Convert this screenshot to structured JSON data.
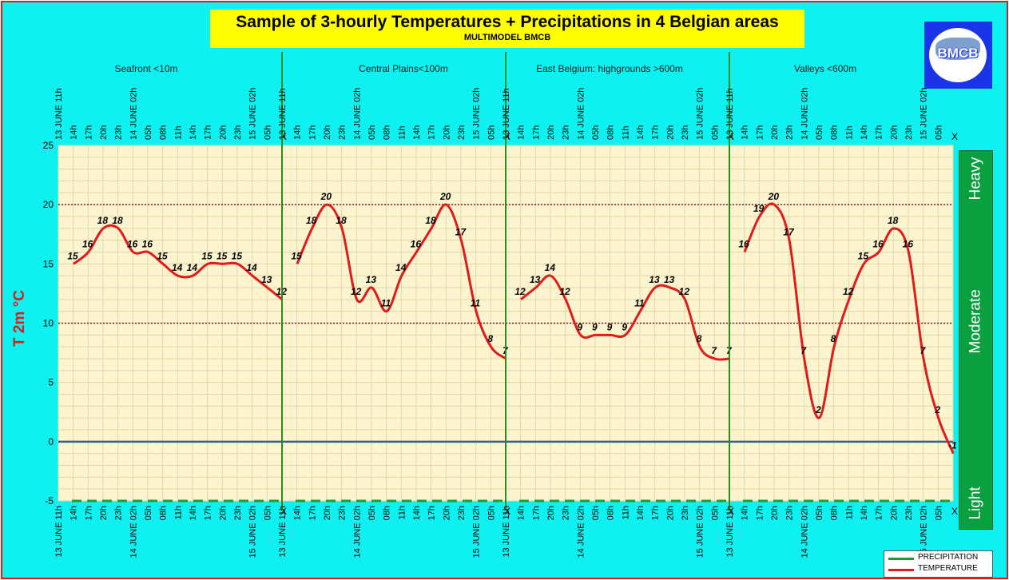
{
  "title": "Sample of 3-hourly Temperatures + Precipitations in 4 Belgian areas",
  "subtitle": "MULTIMODEL BMCB",
  "logo": {
    "text": "BMCB",
    "colors": {
      "bg": "#1a34e8",
      "disc": "#ffffff"
    }
  },
  "y_axis_label": "T 2m °C",
  "intensity_bar": {
    "labels": [
      "Heavy",
      "Moderate",
      "Light"
    ],
    "color": "#0aa040"
  },
  "legend": [
    {
      "label": "PRECIPITATION",
      "color": "#1aa03a"
    },
    {
      "label": "TEMPERATURE",
      "color": "#e01b1b"
    }
  ],
  "colors": {
    "background": "#0ff0f0",
    "plot_area": "#fdf5cf",
    "grid": "#e3d6a8",
    "temperature": "#e01b1b",
    "precipitation": "#1aa03a",
    "zero_line": "#2a5fa0",
    "ref_lines": "#8b1a1a",
    "separator": "#2a8a1a"
  },
  "chart_data": {
    "type": "line",
    "ylim": [
      -5,
      25
    ],
    "yticks": [
      -5,
      0,
      5,
      10,
      15,
      20,
      25
    ],
    "reference_lines": [
      10,
      20
    ],
    "grid": true,
    "legend_position": "bottom-right",
    "x_tick_labels": [
      "13 JUNE 11h",
      "14h",
      "17h",
      "20h",
      "23h",
      "14 JUNE 02h",
      "05h",
      "08h",
      "11h",
      "14h",
      "17h",
      "20h",
      "23h",
      "15 JUNE 02h",
      "05h",
      "X"
    ],
    "panels": [
      {
        "name": "Seafront <10m",
        "series": [
          {
            "name": "TEMPERATURE",
            "values": [
              15,
              16,
              18,
              18,
              16,
              16,
              15,
              14,
              14,
              15,
              15,
              15,
              14,
              13,
              12
            ]
          },
          {
            "name": "PRECIPITATION",
            "values": [
              -5,
              -5,
              -5,
              -5,
              -5,
              -5,
              -5,
              -5,
              -5,
              -5,
              -5,
              -5,
              -5,
              -5,
              -5
            ]
          }
        ]
      },
      {
        "name": "Central Plains<100m",
        "series": [
          {
            "name": "TEMPERATURE",
            "values": [
              15,
              18,
              20,
              18,
              12,
              13,
              11,
              14,
              16,
              18,
              20,
              17,
              11,
              8,
              7
            ]
          },
          {
            "name": "PRECIPITATION",
            "values": [
              -5,
              -5,
              -5,
              -5,
              -5,
              -5,
              -5,
              -5,
              -5,
              -5,
              -5,
              -5,
              -5,
              -5,
              -5
            ]
          }
        ]
      },
      {
        "name": "East Belgium:     highgrounds >600m",
        "series": [
          {
            "name": "TEMPERATURE",
            "values": [
              12,
              13,
              14,
              12,
              9,
              9,
              9,
              9,
              11,
              13,
              13,
              12,
              8,
              7,
              7
            ]
          },
          {
            "name": "PRECIPITATION",
            "values": [
              -5,
              -5,
              -5,
              -5,
              -5,
              -5,
              -5,
              -5,
              -5,
              -5,
              -5,
              -5,
              -5,
              -5,
              -5
            ]
          }
        ]
      },
      {
        "name": "Valleys <600m",
        "series": [
          {
            "name": "TEMPERATURE",
            "values": [
              16,
              19,
              20,
              17,
              7,
              2,
              8,
              12,
              15,
              16,
              18,
              16,
              7,
              2,
              -1
            ]
          },
          {
            "name": "PRECIPITATION",
            "values": [
              -5,
              -5,
              -5,
              -5,
              -5,
              -5,
              -5,
              -5,
              -5,
              -5,
              -5,
              -5,
              -5,
              -5,
              -5
            ]
          }
        ]
      }
    ]
  }
}
